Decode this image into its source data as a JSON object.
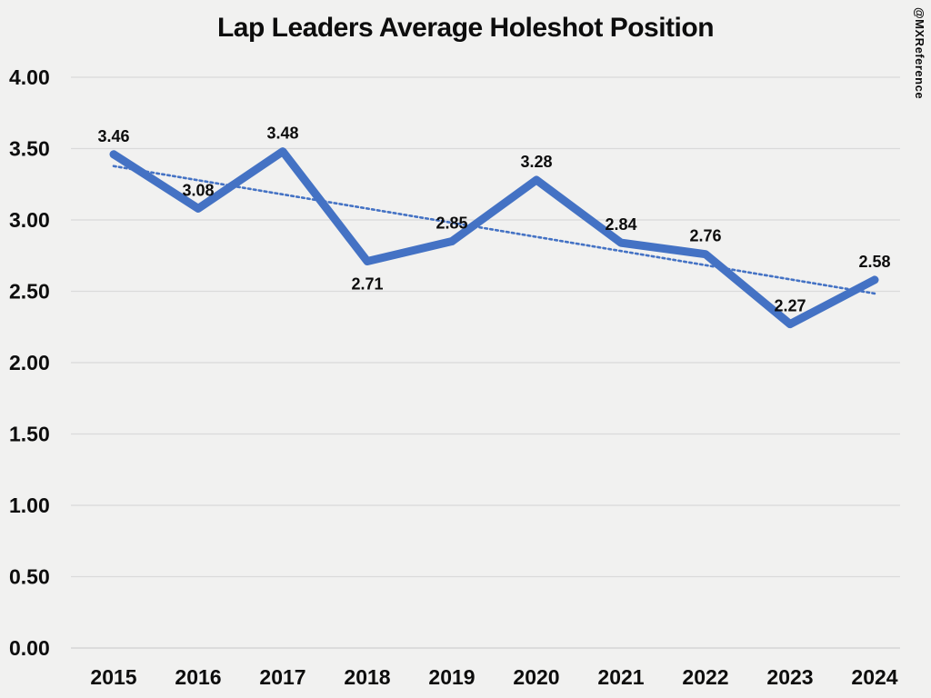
{
  "title": "Lap Leaders Average Holeshot Position",
  "watermark": "@MXReference",
  "chart_data": {
    "type": "line",
    "title": "Lap Leaders Average Holeshot Position",
    "categories": [
      "2015",
      "2016",
      "2017",
      "2018",
      "2019",
      "2020",
      "2021",
      "2022",
      "2023",
      "2024"
    ],
    "series": [
      {
        "name": "Average Holeshot Position",
        "values": [
          3.46,
          3.08,
          3.48,
          2.71,
          2.85,
          3.28,
          2.84,
          2.76,
          2.27,
          2.58
        ]
      }
    ],
    "data_labels": [
      "3.46",
      "3.08",
      "3.48",
      "2.71",
      "2.85",
      "3.28",
      "2.84",
      "2.76",
      "2.27",
      "2.58"
    ],
    "label_position": [
      "above",
      "above",
      "above",
      "below",
      "above",
      "above",
      "above",
      "above",
      "above",
      "above"
    ],
    "yticks": [
      "4.00",
      "3.50",
      "3.00",
      "2.50",
      "2.00",
      "1.50",
      "1.00",
      "0.50",
      "0.00"
    ],
    "ylim": [
      0,
      4
    ],
    "ytick_step": 0.5,
    "xlabel": "",
    "ylabel": "",
    "grid": "horizontal",
    "legend": "none",
    "trendline": {
      "type": "linear",
      "style": "dotted"
    },
    "colors": {
      "line": "#4472C4",
      "trendline": "#4472C4",
      "background": "#F1F1F0",
      "gridline": "#DADADA",
      "axis_line": "#CFCFCF",
      "text": "#0D0D0D"
    }
  }
}
